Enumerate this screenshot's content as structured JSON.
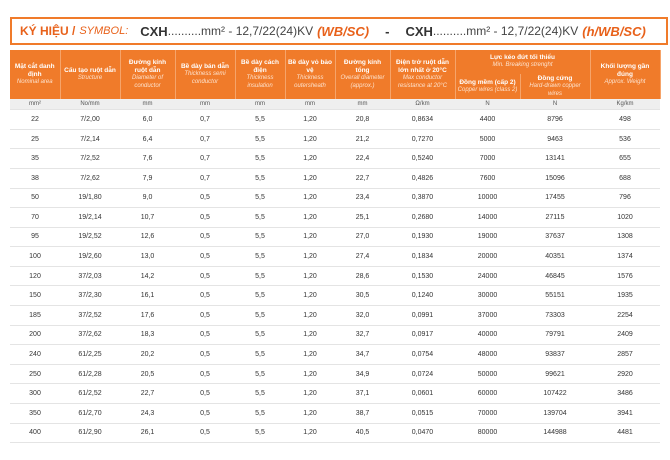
{
  "header": {
    "symbol_label": "KÝ HIỆU /",
    "symbol_label_en": "SYMBOL:",
    "formulas": [
      {
        "code": "CXH",
        "spec": "..........mm² - 12,7/22(24)KV",
        "suffix": "(WB/SC)"
      },
      {
        "code": "CXH",
        "spec": "..........mm² - 12,7/22(24)KV",
        "suffix": "(h/WB/SC)"
      }
    ],
    "separator": "-"
  },
  "table": {
    "columns": [
      {
        "vi": "Mặt cắt danh định",
        "en": "Nominal area"
      },
      {
        "vi": "Cấu tạo ruột dẫn",
        "en": "Structure"
      },
      {
        "vi": "Đường kính ruột dẫn",
        "en": "Diameter of conductor"
      },
      {
        "vi": "Bề dày bán dẫn",
        "en": "Thickness semi conductor"
      },
      {
        "vi": "Bề dày cách điện",
        "en": "Thickness insulation"
      },
      {
        "vi": "Bề dày vỏ bảo vệ",
        "en": "Thickness outersheath"
      },
      {
        "vi": "Đường kính tổng",
        "en": "Overall diameter (approx.)"
      },
      {
        "vi": "Điện trở ruột dẫn lớn nhất ở 20°C",
        "en": "Max conductor resistance at 20°C"
      },
      {
        "vi": "Đồng mềm (cấp 2)",
        "en": "Copper wires (class 2)"
      },
      {
        "vi": "Đồng cứng",
        "en": "Hard-drawn copper wires"
      },
      {
        "vi": "Khối lượng gần đúng",
        "en": "Approx. Weight"
      }
    ],
    "group": {
      "vi": "Lực kéo đứt tối thiểu",
      "en": "Min. Breaking strenght"
    },
    "units": [
      "mm²",
      "No/mm",
      "mm",
      "mm",
      "mm",
      "mm",
      "mm",
      "Ω/km",
      "N",
      "N",
      "Kg/km"
    ],
    "rows": [
      [
        "22",
        "7/2,00",
        "6,0",
        "0,7",
        "5,5",
        "1,20",
        "20,8",
        "0,8634",
        "4400",
        "8796",
        "498"
      ],
      [
        "25",
        "7/2,14",
        "6,4",
        "0,7",
        "5,5",
        "1,20",
        "21,2",
        "0,7270",
        "5000",
        "9463",
        "536"
      ],
      [
        "35",
        "7/2,52",
        "7,6",
        "0,7",
        "5,5",
        "1,20",
        "22,4",
        "0,5240",
        "7000",
        "13141",
        "655"
      ],
      [
        "38",
        "7/2,62",
        "7,9",
        "0,7",
        "5,5",
        "1,20",
        "22,7",
        "0,4826",
        "7600",
        "15096",
        "688"
      ],
      [
        "50",
        "19/1,80",
        "9,0",
        "0,5",
        "5,5",
        "1,20",
        "23,4",
        "0,3870",
        "10000",
        "17455",
        "796"
      ],
      [
        "70",
        "19/2,14",
        "10,7",
        "0,5",
        "5,5",
        "1,20",
        "25,1",
        "0,2680",
        "14000",
        "27115",
        "1020"
      ],
      [
        "95",
        "19/2,52",
        "12,6",
        "0,5",
        "5,5",
        "1,20",
        "27,0",
        "0,1930",
        "19000",
        "37637",
        "1308"
      ],
      [
        "100",
        "19/2,60",
        "13,0",
        "0,5",
        "5,5",
        "1,20",
        "27,4",
        "0,1834",
        "20000",
        "40351",
        "1374"
      ],
      [
        "120",
        "37/2,03",
        "14,2",
        "0,5",
        "5,5",
        "1,20",
        "28,6",
        "0,1530",
        "24000",
        "46845",
        "1576"
      ],
      [
        "150",
        "37/2,30",
        "16,1",
        "0,5",
        "5,5",
        "1,20",
        "30,5",
        "0,1240",
        "30000",
        "55151",
        "1935"
      ],
      [
        "185",
        "37/2,52",
        "17,6",
        "0,5",
        "5,5",
        "1,20",
        "32,0",
        "0,0991",
        "37000",
        "73303",
        "2254"
      ],
      [
        "200",
        "37/2,62",
        "18,3",
        "0,5",
        "5,5",
        "1,20",
        "32,7",
        "0,0917",
        "40000",
        "79791",
        "2409"
      ],
      [
        "240",
        "61/2,25",
        "20,2",
        "0,5",
        "5,5",
        "1,20",
        "34,7",
        "0,0754",
        "48000",
        "93837",
        "2857"
      ],
      [
        "250",
        "61/2,28",
        "20,5",
        "0,5",
        "5,5",
        "1,20",
        "34,9",
        "0,0724",
        "50000",
        "99621",
        "2920"
      ],
      [
        "300",
        "61/2,52",
        "22,7",
        "0,5",
        "5,5",
        "1,20",
        "37,1",
        "0,0601",
        "60000",
        "107422",
        "3486"
      ],
      [
        "350",
        "61/2,70",
        "24,3",
        "0,5",
        "5,5",
        "1,20",
        "38,7",
        "0,0515",
        "70000",
        "139704",
        "3941"
      ],
      [
        "400",
        "61/2,90",
        "26,1",
        "0,5",
        "5,5",
        "1,20",
        "40,5",
        "0,0470",
        "80000",
        "144988",
        "4481"
      ]
    ]
  }
}
